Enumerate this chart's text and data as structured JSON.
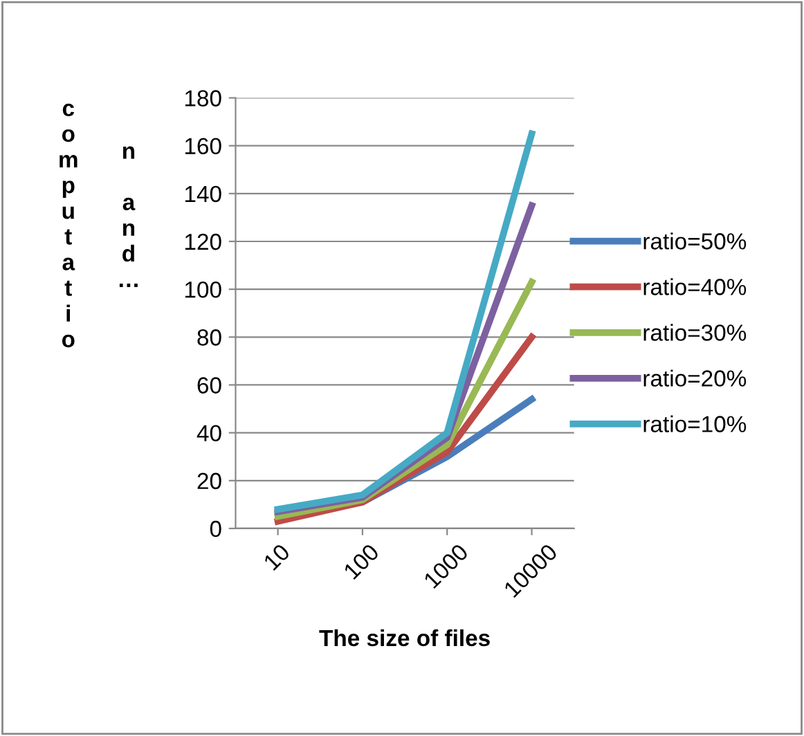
{
  "chart_data": {
    "type": "line",
    "categories": [
      "10",
      "100",
      "1000",
      "10000"
    ],
    "series": [
      {
        "name": "ratio=50%",
        "color": "#4a7ebb",
        "values": [
          6,
          11,
          30,
          54
        ]
      },
      {
        "name": "ratio=40%",
        "color": "#be4b48",
        "values": [
          3,
          11,
          32,
          80
        ]
      },
      {
        "name": "ratio=30%",
        "color": "#98b954",
        "values": [
          5,
          12,
          35,
          103
        ]
      },
      {
        "name": "ratio=20%",
        "color": "#7d60a0",
        "values": [
          7,
          13,
          38,
          135
        ]
      },
      {
        "name": "ratio=10%",
        "color": "#46aac5",
        "values": [
          8,
          14,
          40,
          165
        ]
      }
    ],
    "xlabel": "The size of files",
    "ylabel": "computation and…",
    "ylim": [
      0,
      180
    ],
    "yticks": [
      0,
      20,
      40,
      60,
      80,
      100,
      120,
      140,
      160,
      180
    ],
    "grid": "y",
    "legend": "right",
    "marker": "none",
    "line_style": "solid"
  }
}
